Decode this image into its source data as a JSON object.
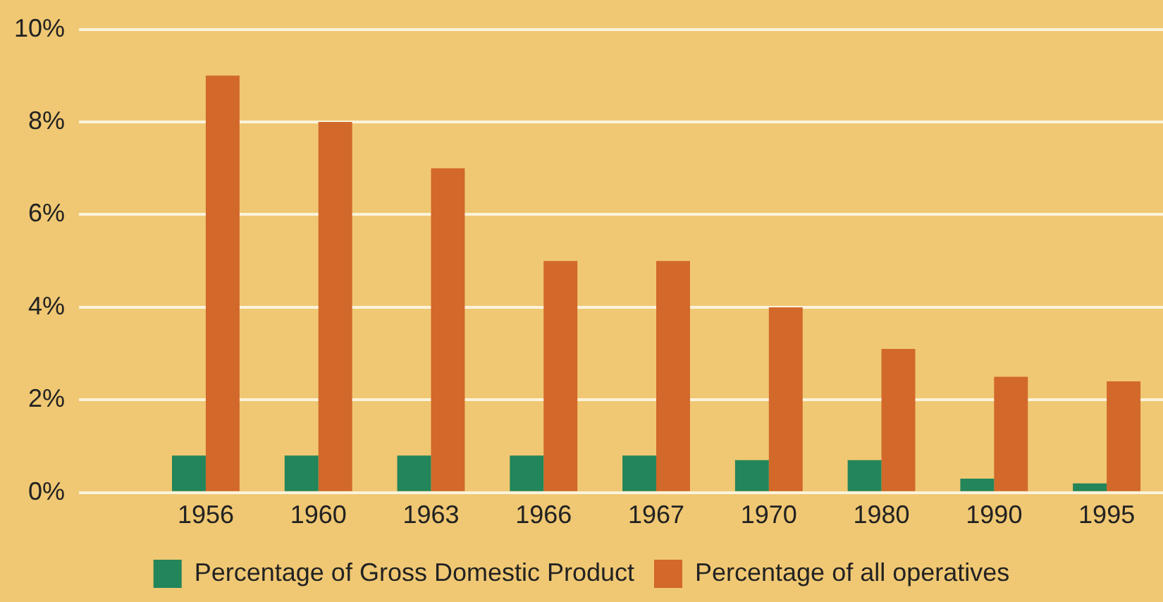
{
  "chart_data": {
    "type": "bar",
    "categories": [
      "1956",
      "1960",
      "1963",
      "1966",
      "1967",
      "1970",
      "1980",
      "1990",
      "1995"
    ],
    "series": [
      {
        "name": "Percentage of Gross Domestic Product",
        "color": "#23855a",
        "values": [
          0.8,
          0.8,
          0.8,
          0.8,
          0.8,
          0.7,
          0.7,
          0.3,
          0.2
        ]
      },
      {
        "name": "Percentage of all operatives",
        "color": "#d2682a",
        "values": [
          9.0,
          8.0,
          7.0,
          5.0,
          5.0,
          4.0,
          3.1,
          2.5,
          2.4
        ]
      }
    ],
    "ylim": [
      0,
      10
    ],
    "yticks": [
      {
        "value": 0,
        "label": "0%"
      },
      {
        "value": 2,
        "label": "2%"
      },
      {
        "value": 4,
        "label": "4%"
      },
      {
        "value": 6,
        "label": "6%"
      },
      {
        "value": 8,
        "label": "8%"
      },
      {
        "value": 10,
        "label": "10%"
      }
    ],
    "grid": "y",
    "legend": "bottom"
  }
}
